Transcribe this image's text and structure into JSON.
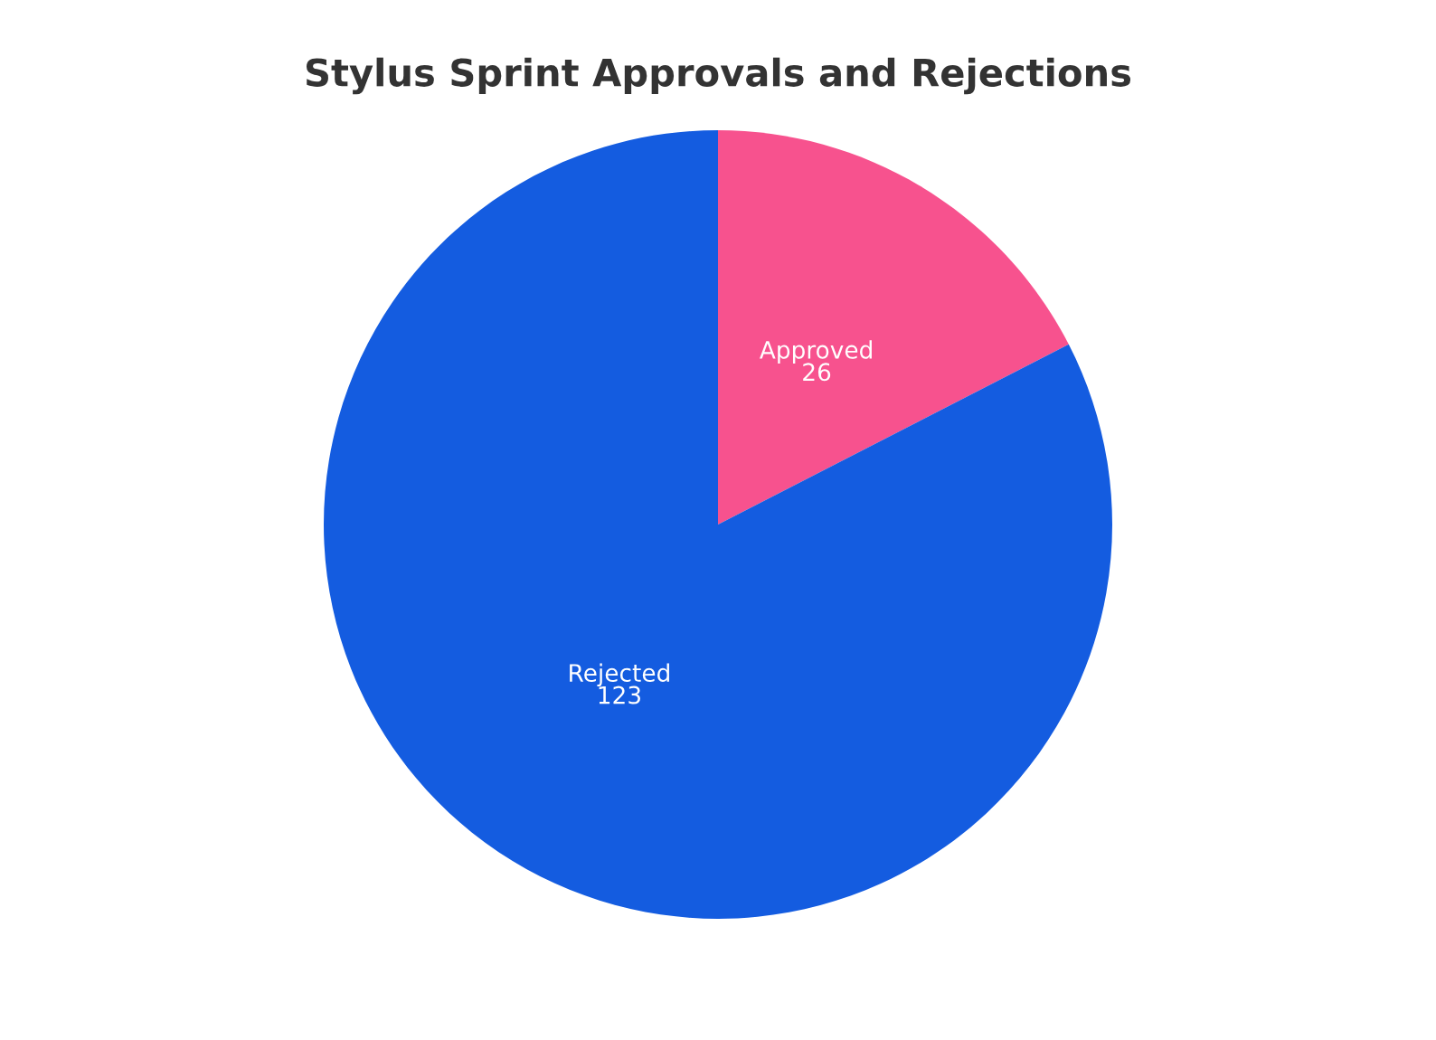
{
  "chart_data": {
    "type": "pie",
    "title": "Stylus Sprint Approvals and Rejections",
    "categories": [
      "Approved",
      "Rejected"
    ],
    "values": [
      26,
      123
    ],
    "colors": [
      "#f7528e",
      "#145ce0"
    ],
    "data_labels": true
  }
}
